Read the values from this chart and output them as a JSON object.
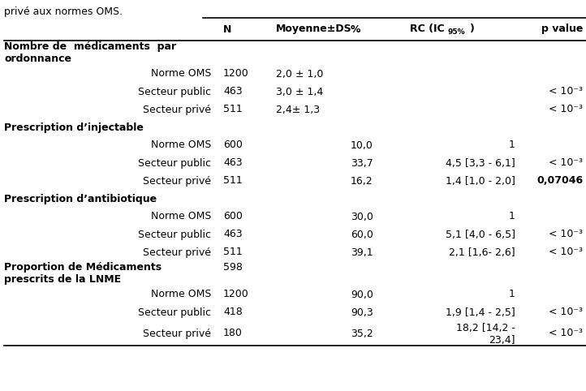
{
  "header_top_text": "privé aux normes OMS.",
  "figsize": [
    7.22,
    4.82
  ],
  "dpi": 100,
  "font_size": 9,
  "bg_color": "white",
  "text_color": "black",
  "rows": [
    {
      "label": "Nombre de  médicaments  par",
      "label2": "ordonnance",
      "bold": true,
      "indent": false,
      "N": "",
      "moyenne": "",
      "pct": "",
      "rc": "",
      "pvalue": "",
      "pvalue_bold": false
    },
    {
      "label": "Norme OMS",
      "label2": "",
      "bold": false,
      "indent": true,
      "N": "1200",
      "moyenne": "2,0 ± 1,0",
      "pct": "",
      "rc": "",
      "pvalue": "",
      "pvalue_bold": false
    },
    {
      "label": "Secteur public",
      "label2": "",
      "bold": false,
      "indent": true,
      "N": "463",
      "moyenne": "3,0 ± 1,4",
      "pct": "",
      "rc": "",
      "pvalue": "< 10⁻³",
      "pvalue_bold": false
    },
    {
      "label": "Secteur privé",
      "label2": "",
      "bold": false,
      "indent": true,
      "N": "511",
      "moyenne": "2,4± 1,3",
      "pct": "",
      "rc": "",
      "pvalue": "< 10⁻³",
      "pvalue_bold": false
    },
    {
      "label": "Prescription d’injectable",
      "label2": "",
      "bold": true,
      "indent": false,
      "N": "",
      "moyenne": "",
      "pct": "",
      "rc": "",
      "pvalue": "",
      "pvalue_bold": false
    },
    {
      "label": "Norme OMS",
      "label2": "",
      "bold": false,
      "indent": true,
      "N": "600",
      "moyenne": "",
      "pct": "10,0",
      "rc": "1",
      "pvalue": "",
      "pvalue_bold": false
    },
    {
      "label": "Secteur public",
      "label2": "",
      "bold": false,
      "indent": true,
      "N": "463",
      "moyenne": "",
      "pct": "33,7",
      "rc": "4,5 [3,3 - 6,1]",
      "pvalue": "< 10⁻³",
      "pvalue_bold": false
    },
    {
      "label": "Secteur privé",
      "label2": "",
      "bold": false,
      "indent": true,
      "N": "511",
      "moyenne": "",
      "pct": "16,2",
      "rc": "1,4 [1,0 - 2,0]",
      "pvalue": "0,07046",
      "pvalue_bold": true
    },
    {
      "label": "Prescription d’antibiotique",
      "label2": "",
      "bold": true,
      "indent": false,
      "N": "",
      "moyenne": "",
      "pct": "",
      "rc": "",
      "pvalue": "",
      "pvalue_bold": false
    },
    {
      "label": "Norme OMS",
      "label2": "",
      "bold": false,
      "indent": true,
      "N": "600",
      "moyenne": "",
      "pct": "30,0",
      "rc": "1",
      "pvalue": "",
      "pvalue_bold": false
    },
    {
      "label": "Secteur public",
      "label2": "",
      "bold": false,
      "indent": true,
      "N": "463",
      "moyenne": "",
      "pct": "60,0",
      "rc": "5,1 [4,0 - 6,5]",
      "pvalue": "< 10⁻³",
      "pvalue_bold": false
    },
    {
      "label": "Secteur privé",
      "label2": "",
      "bold": false,
      "indent": true,
      "N": "511",
      "moyenne": "",
      "pct": "39,1",
      "rc": "2,1 [1,6- 2,6]",
      "pvalue": "< 10⁻³",
      "pvalue_bold": false
    },
    {
      "label": "Proportion de Médicaments",
      "label2": "prescrits de la LNME",
      "bold": true,
      "indent": false,
      "N": "598",
      "moyenne": "",
      "pct": "",
      "rc": "",
      "pvalue": "",
      "pvalue_bold": false
    },
    {
      "label": "Norme OMS",
      "label2": "",
      "bold": false,
      "indent": true,
      "N": "1200",
      "moyenne": "",
      "pct": "90,0",
      "rc": "1",
      "pvalue": "",
      "pvalue_bold": false
    },
    {
      "label": "Secteur public",
      "label2": "",
      "bold": false,
      "indent": true,
      "N": "418",
      "moyenne": "",
      "pct": "90,3",
      "rc": "1,9 [1,4 - 2,5]",
      "pvalue": "< 10⁻³",
      "pvalue_bold": false
    },
    {
      "label": "Secteur privé",
      "label2": "",
      "bold": false,
      "indent": true,
      "N": "180",
      "moyenne": "",
      "pct": "35,2",
      "rc": "18,2 [14,2 -\n23,4]",
      "pvalue": "< 10⁻³",
      "pvalue_bold": false
    }
  ]
}
